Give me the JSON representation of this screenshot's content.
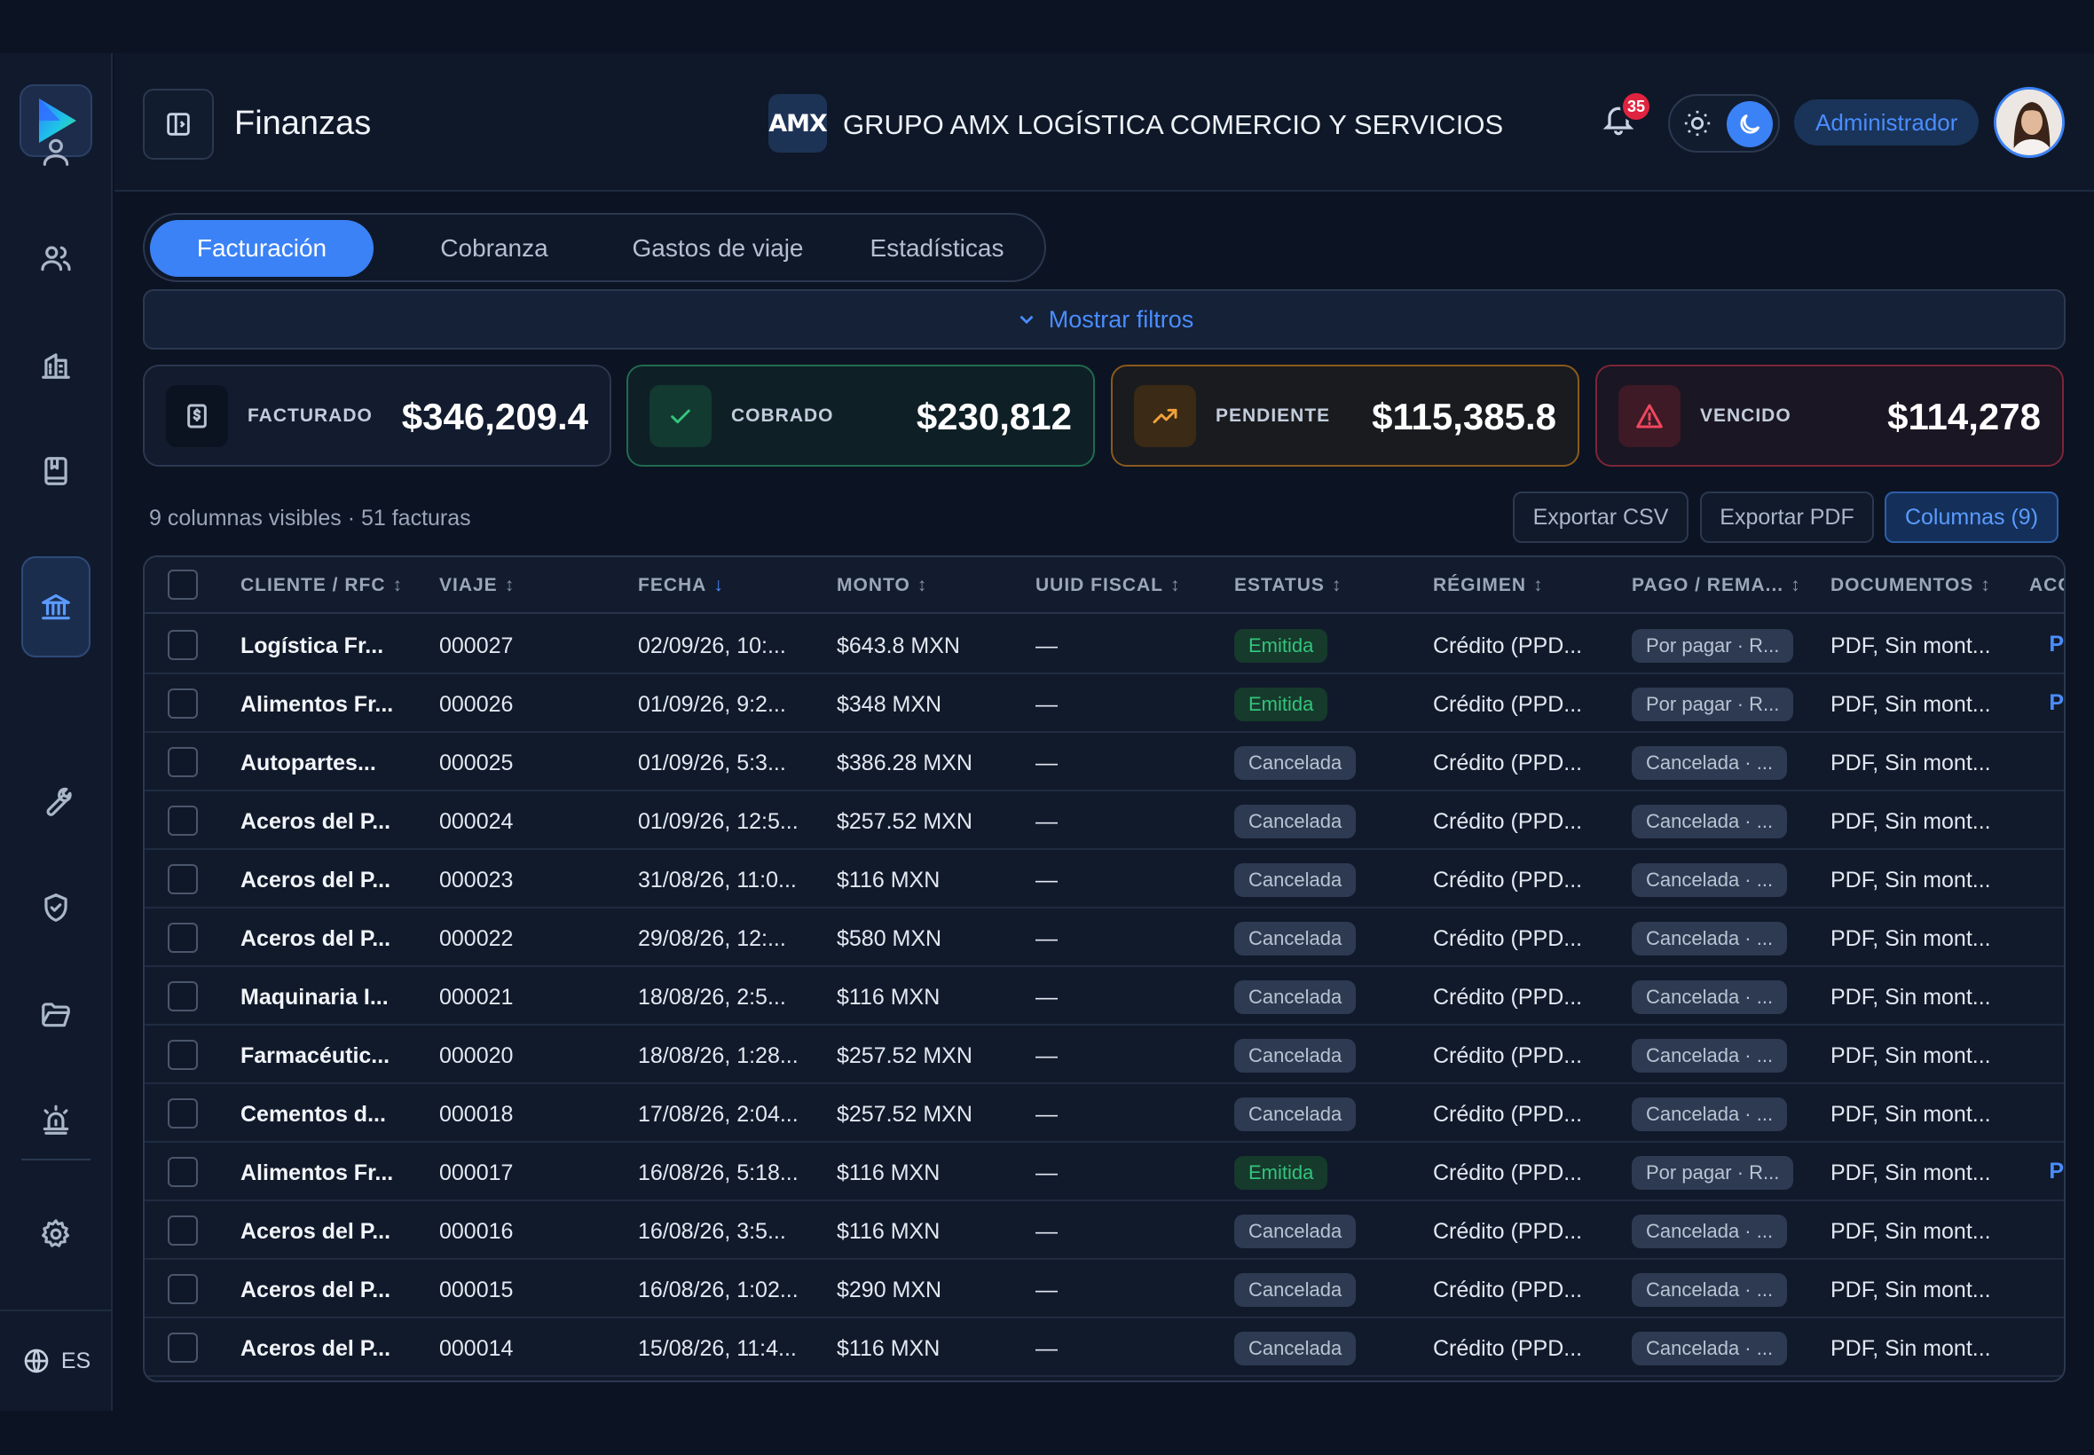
{
  "app": {
    "page_title": "Finanzas",
    "company_logo_text": "AMX",
    "company_name": "GRUPO AMX LOGÍSTICA COMERCIO Y SERVICIOS",
    "notifications_count": "35",
    "role": "Administrador",
    "language": "ES"
  },
  "sidebar": {
    "icons": [
      "user-icon",
      "users-icon",
      "building-icon",
      "book-icon",
      "bank-icon",
      "wrench-icon",
      "shield-check-icon",
      "folder-icon",
      "alarm-icon",
      "gear-icon"
    ],
    "active": "bank-icon"
  },
  "tabs": [
    {
      "label": "Facturación",
      "active": true
    },
    {
      "label": "Cobranza",
      "active": false
    },
    {
      "label": "Gastos de viaje",
      "active": false
    },
    {
      "label": "Estadísticas",
      "active": false
    }
  ],
  "filters": {
    "label": "Mostrar filtros"
  },
  "kpis": [
    {
      "label": "FACTURADO",
      "value": "$346,209.4",
      "icon": "dollar-doc-icon",
      "color": "#9aa6b9"
    },
    {
      "label": "COBRADO",
      "value": "$230,812",
      "icon": "check-icon",
      "color": "#34c47c"
    },
    {
      "label": "PENDIENTE",
      "value": "$115,385.8",
      "icon": "trend-up-icon",
      "color": "#f0a13a"
    },
    {
      "label": "VENCIDO",
      "value": "$114,278",
      "icon": "alert-icon",
      "color": "#f0475e"
    }
  ],
  "table_meta": {
    "summary": "9 columnas visibles · 51 facturas"
  },
  "actions": {
    "export_csv": "Exportar CSV",
    "export_pdf": "Exportar PDF",
    "columns": "Columnas (9)"
  },
  "columns": [
    "CLIENTE / RFC",
    "VIAJE",
    "FECHA",
    "MONTO",
    "UUID FISCAL",
    "ESTATUS",
    "RÉGIMEN",
    "PAGO / REMA...",
    "DOCUMENTOS",
    "ACC"
  ],
  "rows": [
    {
      "client": "Logística Fr...",
      "trip": "000027",
      "date": "02/09/26, 10:...",
      "amount": "$643.8 MXN",
      "uuid": "—",
      "status": "Emitida",
      "regime": "Crédito (PPD...",
      "payment": "Por pagar · R...",
      "docs": "PDF, Sin mont...",
      "edge": "P"
    },
    {
      "client": "Alimentos Fr...",
      "trip": "000026",
      "date": "01/09/26, 9:2...",
      "amount": "$348 MXN",
      "uuid": "—",
      "status": "Emitida",
      "regime": "Crédito (PPD...",
      "payment": "Por pagar · R...",
      "docs": "PDF, Sin mont...",
      "edge": "P"
    },
    {
      "client": "Autopartes...",
      "trip": "000025",
      "date": "01/09/26, 5:3...",
      "amount": "$386.28 MXN",
      "uuid": "—",
      "status": "Cancelada",
      "regime": "Crédito (PPD...",
      "payment": "Cancelada · ...",
      "docs": "PDF, Sin mont...",
      "edge": ""
    },
    {
      "client": "Aceros del P...",
      "trip": "000024",
      "date": "01/09/26, 12:5...",
      "amount": "$257.52 MXN",
      "uuid": "—",
      "status": "Cancelada",
      "regime": "Crédito (PPD...",
      "payment": "Cancelada · ...",
      "docs": "PDF, Sin mont...",
      "edge": ""
    },
    {
      "client": "Aceros del P...",
      "trip": "000023",
      "date": "31/08/26, 11:0...",
      "amount": "$116 MXN",
      "uuid": "—",
      "status": "Cancelada",
      "regime": "Crédito (PPD...",
      "payment": "Cancelada · ...",
      "docs": "PDF, Sin mont...",
      "edge": ""
    },
    {
      "client": "Aceros del P...",
      "trip": "000022",
      "date": "29/08/26, 12:...",
      "amount": "$580 MXN",
      "uuid": "—",
      "status": "Cancelada",
      "regime": "Crédito (PPD...",
      "payment": "Cancelada · ...",
      "docs": "PDF, Sin mont...",
      "edge": ""
    },
    {
      "client": "Maquinaria I...",
      "trip": "000021",
      "date": "18/08/26, 2:5...",
      "amount": "$116 MXN",
      "uuid": "—",
      "status": "Cancelada",
      "regime": "Crédito (PPD...",
      "payment": "Cancelada · ...",
      "docs": "PDF, Sin mont...",
      "edge": ""
    },
    {
      "client": "Farmacéutic...",
      "trip": "000020",
      "date": "18/08/26, 1:28...",
      "amount": "$257.52 MXN",
      "uuid": "—",
      "status": "Cancelada",
      "regime": "Crédito (PPD...",
      "payment": "Cancelada · ...",
      "docs": "PDF, Sin mont...",
      "edge": ""
    },
    {
      "client": "Cementos d...",
      "trip": "000018",
      "date": "17/08/26, 2:04...",
      "amount": "$257.52 MXN",
      "uuid": "—",
      "status": "Cancelada",
      "regime": "Crédito (PPD...",
      "payment": "Cancelada · ...",
      "docs": "PDF, Sin mont...",
      "edge": ""
    },
    {
      "client": "Alimentos Fr...",
      "trip": "000017",
      "date": "16/08/26, 5:18...",
      "amount": "$116 MXN",
      "uuid": "—",
      "status": "Emitida",
      "regime": "Crédito (PPD...",
      "payment": "Por pagar · R...",
      "docs": "PDF, Sin mont...",
      "edge": "P"
    },
    {
      "client": "Aceros del P...",
      "trip": "000016",
      "date": "16/08/26, 3:5...",
      "amount": "$116 MXN",
      "uuid": "—",
      "status": "Cancelada",
      "regime": "Crédito (PPD...",
      "payment": "Cancelada · ...",
      "docs": "PDF, Sin mont...",
      "edge": ""
    },
    {
      "client": "Aceros del P...",
      "trip": "000015",
      "date": "16/08/26, 1:02...",
      "amount": "$290 MXN",
      "uuid": "—",
      "status": "Cancelada",
      "regime": "Crédito (PPD...",
      "payment": "Cancelada · ...",
      "docs": "PDF, Sin mont...",
      "edge": ""
    },
    {
      "client": "Aceros del P...",
      "trip": "000014",
      "date": "15/08/26, 11:4...",
      "amount": "$116 MXN",
      "uuid": "—",
      "status": "Cancelada",
      "regime": "Crédito (PPD...",
      "payment": "Cancelada · ...",
      "docs": "PDF, Sin mont...",
      "edge": ""
    }
  ]
}
